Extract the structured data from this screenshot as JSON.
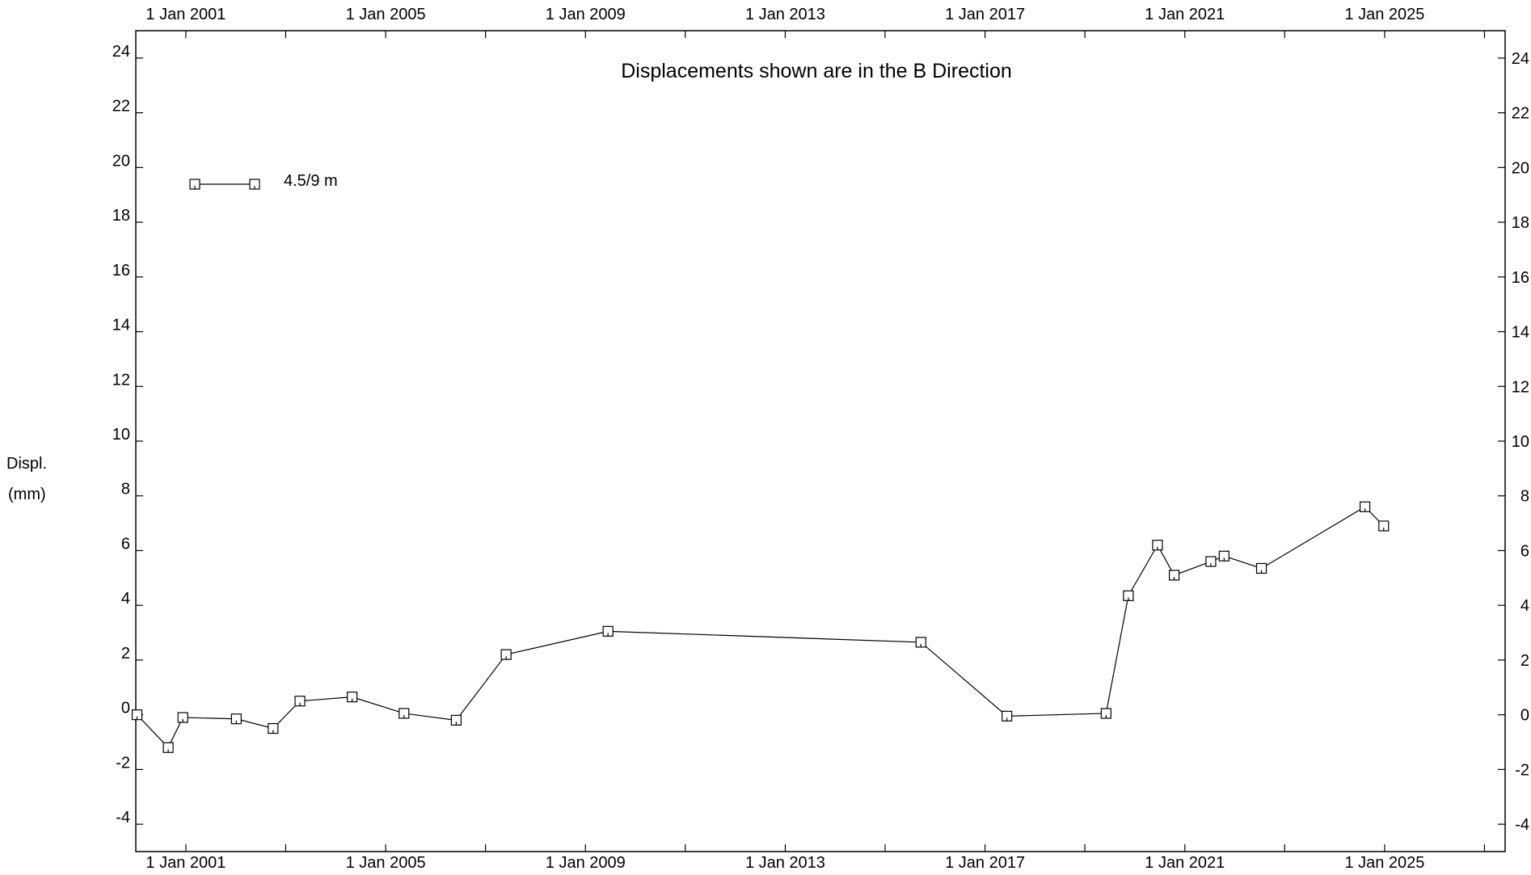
{
  "chart_data": {
    "type": "line",
    "title": "Displacements shown are in the  B Direction",
    "ylabel": [
      "Displ.",
      "(mm)"
    ],
    "xlabel": "",
    "x_axis_type": "date",
    "xlim": [
      "2000-01-01",
      "2027-06-01"
    ],
    "ylim": [
      -5,
      25
    ],
    "x_ticks": [
      {
        "date": "2001-01-01",
        "label": "1 Jan 2001"
      },
      {
        "date": "2005-01-01",
        "label": "1 Jan 2005"
      },
      {
        "date": "2009-01-01",
        "label": "1 Jan 2009"
      },
      {
        "date": "2013-01-01",
        "label": "1 Jan 2013"
      },
      {
        "date": "2017-01-01",
        "label": "1 Jan 2017"
      },
      {
        "date": "2021-01-01",
        "label": "1 Jan 2021"
      },
      {
        "date": "2025-01-01",
        "label": "1 Jan 2025"
      }
    ],
    "x_minor_ticks": [
      "2003-01-01",
      "2007-01-01",
      "2011-01-01",
      "2015-01-01",
      "2019-01-01",
      "2023-01-01",
      "2027-01-01"
    ],
    "y_ticks": [
      {
        "value": 24,
        "label": "24"
      },
      {
        "value": 22,
        "label": "22"
      },
      {
        "value": 20,
        "label": "20"
      },
      {
        "value": 18,
        "label": "18"
      },
      {
        "value": 16,
        "label": "16"
      },
      {
        "value": 14,
        "label": "14"
      },
      {
        "value": 12,
        "label": "12"
      },
      {
        "value": 10,
        "label": "10"
      },
      {
        "value": 8,
        "label": "8"
      },
      {
        "value": 6,
        "label": "6"
      },
      {
        "value": 4,
        "label": "4"
      },
      {
        "value": 2,
        "label": "2"
      },
      {
        "value": 0,
        "label": "0"
      },
      {
        "value": -2,
        "label": "-2"
      },
      {
        "value": -4,
        "label": "-4"
      }
    ],
    "grid": false,
    "legend_position": "top-left",
    "series": [
      {
        "name": "4.5/9 m",
        "marker": "square",
        "color": "#000000",
        "points": [
          {
            "x": "2000-01-10",
            "y": 0.0
          },
          {
            "x": "2000-08-25",
            "y": -1.2
          },
          {
            "x": "2000-12-10",
            "y": -0.1
          },
          {
            "x": "2002-01-05",
            "y": -0.15
          },
          {
            "x": "2002-10-01",
            "y": -0.5
          },
          {
            "x": "2003-04-15",
            "y": 0.5
          },
          {
            "x": "2004-05-01",
            "y": 0.65
          },
          {
            "x": "2005-05-15",
            "y": 0.05
          },
          {
            "x": "2006-06-01",
            "y": -0.2
          },
          {
            "x": "2007-06-01",
            "y": 2.2
          },
          {
            "x": "2009-06-15",
            "y": 3.05
          },
          {
            "x": "2015-09-20",
            "y": 2.65
          },
          {
            "x": "2017-06-10",
            "y": -0.05
          },
          {
            "x": "2019-06-05",
            "y": 0.05
          },
          {
            "x": "2019-11-15",
            "y": 4.35
          },
          {
            "x": "2020-06-15",
            "y": 6.2
          },
          {
            "x": "2020-10-15",
            "y": 5.1
          },
          {
            "x": "2021-07-10",
            "y": 5.6
          },
          {
            "x": "2021-10-15",
            "y": 5.8
          },
          {
            "x": "2022-07-15",
            "y": 5.35
          },
          {
            "x": "2024-08-10",
            "y": 7.6
          },
          {
            "x": "2024-12-25",
            "y": 6.9
          }
        ]
      }
    ]
  }
}
